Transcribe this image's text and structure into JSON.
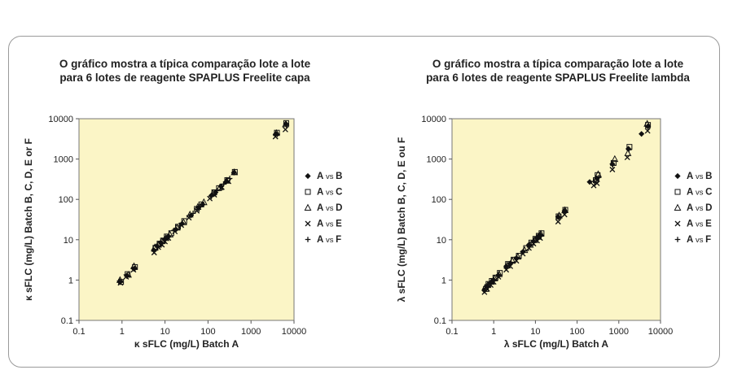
{
  "chart_data": [
    {
      "type": "scatter",
      "title": [
        "O gráfico mostra a típica comparação lote a lote",
        "para 6 lotes de reagente SPAPLUS Freelite capa"
      ],
      "xlabel": "κ sFLC (mg/L) Batch A",
      "ylabel": "κ sFLC (mg/L) Batch B, C, D, E or F",
      "xscale": "log",
      "yscale": "log",
      "xlim": [
        0.1,
        10000
      ],
      "ylim": [
        0.1,
        10000
      ],
      "xticks": [
        "0.1",
        "1",
        "10",
        "100",
        "1000",
        "10000"
      ],
      "yticks": [
        "0.1",
        "1",
        "10",
        "100",
        "1000",
        "10000"
      ],
      "grid": false,
      "legend_position": "right",
      "series": [
        {
          "name": "A vs B",
          "marker": "diamond",
          "points": [
            [
              0.9,
              0.9
            ],
            [
              1.3,
              1.3
            ],
            [
              1.9,
              1.9
            ],
            [
              5.5,
              5.5
            ],
            [
              6.5,
              7.0
            ],
            [
              8,
              8.5
            ],
            [
              10,
              10.5
            ],
            [
              12,
              12
            ],
            [
              18,
              18
            ],
            [
              25,
              25
            ],
            [
              40,
              40
            ],
            [
              60,
              62
            ],
            [
              75,
              75
            ],
            [
              120,
              125
            ],
            [
              150,
              150
            ],
            [
              200,
              210
            ],
            [
              260,
              270
            ],
            [
              400,
              460
            ],
            [
              3800,
              4200
            ],
            [
              6500,
              7500
            ]
          ]
        },
        {
          "name": "A vs C",
          "marker": "square",
          "points": [
            [
              0.95,
              0.9
            ],
            [
              1.35,
              1.4
            ],
            [
              2.0,
              2.1
            ],
            [
              6,
              6.3
            ],
            [
              7.5,
              8
            ],
            [
              9,
              9.5
            ],
            [
              11,
              12
            ],
            [
              14,
              14.5
            ],
            [
              20,
              21
            ],
            [
              28,
              29
            ],
            [
              55,
              58
            ],
            [
              70,
              75
            ],
            [
              140,
              150
            ],
            [
              180,
              190
            ],
            [
              280,
              300
            ],
            [
              420,
              480
            ],
            [
              4000,
              4500
            ],
            [
              6600,
              7800
            ]
          ]
        },
        {
          "name": "A vs D",
          "marker": "triangle",
          "points": [
            [
              0.9,
              1.0
            ],
            [
              1.4,
              1.35
            ],
            [
              1.9,
              2.2
            ],
            [
              5.8,
              6.5
            ],
            [
              7,
              7.5
            ],
            [
              8.5,
              9.2
            ],
            [
              10.5,
              11
            ],
            [
              13,
              13.5
            ],
            [
              19,
              20
            ],
            [
              27,
              27
            ],
            [
              38,
              42
            ],
            [
              58,
              65
            ],
            [
              80,
              85
            ],
            [
              130,
              140
            ],
            [
              190,
              200
            ],
            [
              270,
              290
            ],
            [
              410,
              470
            ],
            [
              3900,
              4400
            ],
            [
              6400,
              7300
            ]
          ]
        },
        {
          "name": "A vs E",
          "marker": "x",
          "points": [
            [
              0.92,
              0.85
            ],
            [
              1.25,
              1.2
            ],
            [
              1.85,
              1.8
            ],
            [
              5.6,
              4.8
            ],
            [
              7,
              6.5
            ],
            [
              8.5,
              7.5
            ],
            [
              10,
              9
            ],
            [
              12,
              11
            ],
            [
              17,
              16
            ],
            [
              24,
              23
            ],
            [
              36,
              35
            ],
            [
              55,
              52
            ],
            [
              110,
              105
            ],
            [
              140,
              130
            ],
            [
              210,
              200
            ],
            [
              300,
              280
            ],
            [
              3700,
              3600
            ],
            [
              6300,
              5400
            ]
          ]
        },
        {
          "name": "A vs F",
          "marker": "plus",
          "points": [
            [
              0.88,
              0.95
            ],
            [
              1.3,
              1.25
            ],
            [
              2.0,
              1.95
            ],
            [
              5.5,
              5.2
            ],
            [
              6.8,
              6.8
            ],
            [
              8.2,
              8.0
            ],
            [
              9.8,
              10
            ],
            [
              11.5,
              11.5
            ],
            [
              16,
              17
            ],
            [
              22,
              22
            ],
            [
              45,
              45
            ],
            [
              65,
              68
            ],
            [
              120,
              118
            ],
            [
              160,
              165
            ],
            [
              230,
              240
            ],
            [
              320,
              330
            ],
            [
              4100,
              4100
            ],
            [
              6700,
              6900
            ]
          ]
        }
      ]
    },
    {
      "type": "scatter",
      "title": [
        "O gráfico mostra a típica comparação lote a lote",
        "para 6 lotes de reagente SPAPLUS Freelite lambda"
      ],
      "xlabel": "λ sFLC (mg/L) Batch A",
      "ylabel": "λ sFLC (mg/L) Batch B, C, D, E ou F",
      "xscale": "log",
      "yscale": "log",
      "xlim": [
        0.1,
        10000
      ],
      "ylim": [
        0.1,
        10000
      ],
      "xticks": [
        "0.1",
        "1",
        "10",
        "100",
        "1000",
        "10000"
      ],
      "yticks": [
        "0.1",
        "1",
        "10",
        "100",
        "1000",
        "10000"
      ],
      "grid": false,
      "legend_position": "right",
      "series": [
        {
          "name": "A vs B",
          "marker": "diamond",
          "points": [
            [
              0.6,
              0.55
            ],
            [
              0.7,
              0.7
            ],
            [
              0.85,
              0.85
            ],
            [
              1.0,
              1.0
            ],
            [
              1.3,
              1.3
            ],
            [
              2.0,
              2.2
            ],
            [
              2.5,
              2.6
            ],
            [
              3.5,
              3.5
            ],
            [
              5,
              5
            ],
            [
              7,
              7.5
            ],
            [
              9,
              9
            ],
            [
              11,
              11
            ],
            [
              13,
              13
            ],
            [
              35,
              37
            ],
            [
              50,
              52
            ],
            [
              200,
              270
            ],
            [
              300,
              330
            ],
            [
              700,
              750
            ],
            [
              1700,
              1800
            ],
            [
              3500,
              4200
            ],
            [
              5000,
              6500
            ]
          ]
        },
        {
          "name": "A vs C",
          "marker": "square",
          "points": [
            [
              0.65,
              0.6
            ],
            [
              0.75,
              0.8
            ],
            [
              0.9,
              0.95
            ],
            [
              1.1,
              1.15
            ],
            [
              1.4,
              1.5
            ],
            [
              2.2,
              2.5
            ],
            [
              3,
              3.2
            ],
            [
              4,
              4
            ],
            [
              6,
              6.2
            ],
            [
              8,
              8.5
            ],
            [
              10,
              10.5
            ],
            [
              12,
              12.5
            ],
            [
              14,
              14.5
            ],
            [
              36,
              38
            ],
            [
              52,
              55
            ],
            [
              280,
              300
            ],
            [
              310,
              400
            ],
            [
              750,
              800
            ],
            [
              1800,
              2000
            ],
            [
              5000,
              7000
            ]
          ]
        },
        {
          "name": "A vs D",
          "marker": "triangle",
          "points": [
            [
              0.62,
              0.65
            ],
            [
              0.72,
              0.75
            ],
            [
              0.88,
              0.9
            ],
            [
              1.05,
              1.1
            ],
            [
              1.35,
              1.4
            ],
            [
              2.1,
              2.3
            ],
            [
              2.8,
              3.0
            ],
            [
              3.8,
              3.8
            ],
            [
              5.5,
              5.5
            ],
            [
              7.5,
              7.5
            ],
            [
              9.5,
              9.8
            ],
            [
              11.5,
              11.8
            ],
            [
              13.5,
              14
            ],
            [
              37,
              40
            ],
            [
              51,
              54
            ],
            [
              290,
              320
            ],
            [
              320,
              420
            ],
            [
              800,
              1000
            ],
            [
              1650,
              1400
            ],
            [
              4800,
              7500
            ]
          ]
        },
        {
          "name": "A vs E",
          "marker": "x",
          "points": [
            [
              0.6,
              0.5
            ],
            [
              0.7,
              0.6
            ],
            [
              0.85,
              0.75
            ],
            [
              1.0,
              0.9
            ],
            [
              1.3,
              1.2
            ],
            [
              2.0,
              1.8
            ],
            [
              2.5,
              2.2
            ],
            [
              3.5,
              3.0
            ],
            [
              5,
              4.5
            ],
            [
              7,
              6.2
            ],
            [
              9,
              8
            ],
            [
              11,
              9.5
            ],
            [
              13,
              11
            ],
            [
              35,
              28
            ],
            [
              50,
              42
            ],
            [
              250,
              220
            ],
            [
              300,
              250
            ],
            [
              700,
              550
            ],
            [
              1600,
              1100
            ],
            [
              4900,
              5000
            ]
          ]
        },
        {
          "name": "A vs F",
          "marker": "plus",
          "points": [
            [
              0.63,
              0.62
            ],
            [
              0.73,
              0.72
            ],
            [
              0.87,
              0.88
            ],
            [
              1.02,
              1.0
            ],
            [
              1.32,
              1.35
            ],
            [
              2.05,
              2.0
            ],
            [
              2.6,
              2.7
            ],
            [
              3.6,
              3.7
            ],
            [
              5.2,
              5.3
            ],
            [
              7.2,
              7.0
            ],
            [
              9.2,
              9.5
            ],
            [
              11.2,
              11.5
            ],
            [
              13.2,
              13.5
            ],
            [
              36,
              36
            ],
            [
              51,
              50
            ],
            [
              260,
              280
            ],
            [
              330,
              350
            ],
            [
              720,
              700
            ],
            [
              1750,
              1700
            ],
            [
              5000,
              6000
            ]
          ]
        }
      ]
    }
  ],
  "legend": [
    {
      "a": "A",
      "vs": "vs",
      "b": "B",
      "marker": "diamond"
    },
    {
      "a": "A",
      "vs": "vs",
      "b": "C",
      "marker": "square"
    },
    {
      "a": "A",
      "vs": "vs",
      "b": "D",
      "marker": "triangle"
    },
    {
      "a": "A",
      "vs": "vs",
      "b": "E",
      "marker": "x"
    },
    {
      "a": "A",
      "vs": "vs",
      "b": "F",
      "marker": "plus"
    }
  ],
  "colors": {
    "plot_background": "#fbf5c6",
    "marker": "#111111",
    "frame_border": "#9a9a9a"
  }
}
